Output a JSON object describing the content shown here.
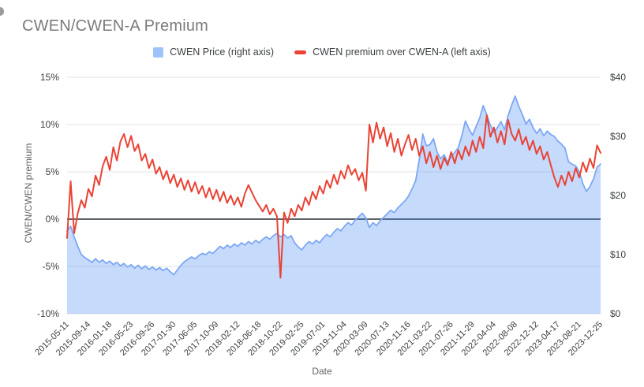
{
  "title": "CWEN/CWEN-A Premium",
  "legend": [
    {
      "label": "CWEN Price (right axis)",
      "marker": "square",
      "color": "#a0c2fa"
    },
    {
      "label": "CWEN premium over CWEN-A (left axis)",
      "marker": "dash",
      "color": "#ea4335"
    }
  ],
  "colors": {
    "price_line": "#7da7f4",
    "price_fill": "#4285f4",
    "price_fill_opacity": 0.3,
    "premium_line": "#ea4335",
    "gridline": "#e3e3e3",
    "zero_line": "#5f6368",
    "tick_text": "#3c4043",
    "axis_title_text": "#5f6368",
    "title_text": "#7b7b7b"
  },
  "chart_data": {
    "type": "area+line (dual axis, weekly time series)",
    "title": "CWEN/CWEN-A Premium",
    "xlabel": "Date",
    "x_tick_labels": [
      "2015-05-11",
      "2015-09-14",
      "2016-01-18",
      "2016-05-23",
      "2016-09-26",
      "2017-01-30",
      "2017-06-05",
      "2017-10-09",
      "2018-02-12",
      "2018-06-18",
      "2018-10-22",
      "2019-02-25",
      "2019-07-01",
      "2019-11-04",
      "2020-03-09",
      "2020-07-13",
      "2020-11-16",
      "2021-03-22",
      "2021-07-26",
      "2021-11-29",
      "2022-04-04",
      "2022-08-08",
      "2022-12-12",
      "2023-04-17",
      "2023-08-21",
      "2023-12-25"
    ],
    "x_tick_step_weeks": 18,
    "x_total_weeks": 450,
    "x_step_weeks": 3,
    "left_axis": {
      "title": "CWEN/CWEN premium",
      "min": -10,
      "max": 15,
      "tick_values": [
        15,
        10,
        5,
        0,
        -5,
        -10
      ],
      "tick_labels": [
        "15%",
        "10%",
        "5%",
        "0%",
        "-5%",
        "-10%"
      ]
    },
    "right_axis": {
      "title": "",
      "min": 0,
      "max": 40,
      "tick_values": [
        40,
        30,
        20,
        10,
        0
      ],
      "tick_labels": [
        "$40",
        "$30",
        "$20",
        "$10",
        "$0"
      ]
    },
    "baseline": {
      "axis": "left",
      "value": 0
    },
    "grid": "horizontal, at left-axis ticks",
    "legend_position": "top center",
    "series": [
      {
        "name": "CWEN Price (right axis)",
        "type": "area",
        "axis": "right",
        "unit": "USD",
        "values": [
          14,
          14.8,
          13,
          11.4,
          10,
          9.5,
          9.1,
          8.7,
          9.3,
          8.7,
          9.1,
          8.5,
          8.9,
          8.3,
          8.7,
          8.1,
          8.5,
          7.9,
          8.3,
          7.7,
          8.2,
          7.6,
          8.1,
          7.5,
          7.9,
          7.4,
          7.8,
          7.3,
          7.7,
          7.1,
          6.6,
          7.4,
          8.2,
          8.8,
          9.2,
          9.6,
          9.3,
          9.8,
          10.2,
          10,
          10.5,
          10.2,
          10.8,
          11.4,
          11,
          11.6,
          11.2,
          11.8,
          11.4,
          12,
          11.6,
          12.2,
          11.8,
          12.4,
          12,
          12.6,
          13,
          12.6,
          13.2,
          13.6,
          13,
          13.4,
          12.8,
          13.2,
          12,
          11.3,
          10.8,
          11.6,
          12.2,
          11.8,
          12.4,
          12,
          12.8,
          13.4,
          13,
          13.8,
          14.4,
          14,
          14.8,
          15.4,
          15,
          15.8,
          16.4,
          17,
          16.2,
          14.6,
          15.4,
          14.9,
          15.7,
          16.3,
          16.9,
          17.5,
          17.1,
          17.9,
          18.5,
          19.1,
          19.9,
          21.1,
          22.5,
          26,
          30.4,
          28.4,
          28.6,
          29.6,
          27.4,
          26.2,
          26.9,
          25.7,
          26.5,
          27.3,
          28.1,
          30.1,
          32.6,
          31.2,
          30.2,
          31.7,
          33.1,
          35.2,
          33.6,
          31.9,
          30.7,
          31.5,
          32.5,
          31.1,
          33.5,
          35.3,
          36.8,
          35.1,
          33.7,
          32.1,
          32.9,
          31.5,
          30.5,
          31.3,
          30.1,
          30.9,
          30.3,
          30,
          29.2,
          28.7,
          28,
          25.7,
          25.3,
          25,
          24,
          22,
          20.7,
          21.5,
          22.8,
          24.8,
          25.3
        ]
      },
      {
        "name": "CWEN premium over CWEN-A (left axis)",
        "type": "line",
        "axis": "left",
        "unit": "%",
        "values": [
          -2,
          4,
          -1.5,
          0.6,
          2,
          1.2,
          3.2,
          2.4,
          4.6,
          3.6,
          5.6,
          6.6,
          5.2,
          7.6,
          6.2,
          8.2,
          9,
          7.6,
          8.8,
          7.2,
          7.9,
          6.2,
          6.9,
          5.4,
          6.3,
          4.8,
          5.5,
          4.2,
          5.1,
          3.8,
          4.7,
          3.4,
          4.3,
          3.1,
          4.1,
          2.9,
          3.9,
          2.7,
          3.5,
          2.3,
          3.3,
          2.1,
          3.1,
          1.9,
          2.9,
          1.7,
          2.5,
          1.5,
          2.3,
          1.3,
          2.7,
          3.6,
          2.8,
          2,
          1.4,
          0.8,
          1.5,
          0.5,
          1.1,
          0.3,
          -6.2,
          0.7,
          -0.4,
          1.1,
          0.3,
          1.5,
          0.9,
          2.3,
          1.5,
          2.9,
          2.1,
          3.5,
          2.7,
          4.1,
          3.3,
          4.7,
          3.7,
          5.1,
          4.3,
          5.7,
          4.7,
          5.3,
          4.1,
          4.9,
          3,
          10,
          8.1,
          10.2,
          8.5,
          9.7,
          7.7,
          9.1,
          7.1,
          8.5,
          6.7,
          7.9,
          8.9,
          7.3,
          8.5,
          6.7,
          7.7,
          5.9,
          7.1,
          5.5,
          6.7,
          5.3,
          6.5,
          5.7,
          7.1,
          5.9,
          7.3,
          6.3,
          7.7,
          6.7,
          8.3,
          7.1,
          8.7,
          7.5,
          11,
          8.7,
          9.7,
          8.1,
          9.3,
          7.9,
          10.5,
          9,
          8.3,
          9.5,
          7.9,
          8.7,
          7.3,
          8.3,
          6.9,
          7.7,
          6.3,
          7.1,
          5.7,
          4.4,
          3.4,
          4.6,
          3.6,
          5,
          4,
          5.4,
          4.4,
          6,
          5,
          6.4,
          5.4,
          7.8,
          7
        ]
      }
    ]
  }
}
